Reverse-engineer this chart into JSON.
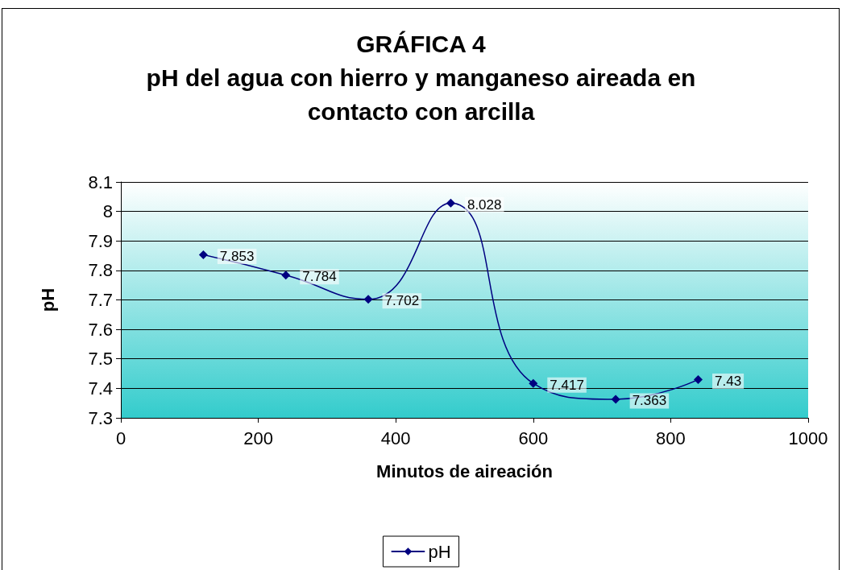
{
  "chart_data": {
    "type": "line",
    "title": "GRÁFICA 4\npH del agua con hierro y manganeso aireada en\ncontacto con arcilla",
    "xlabel": "Minutos de aireación",
    "ylabel": "pH",
    "x": [
      120,
      240,
      360,
      480,
      600,
      720,
      840
    ],
    "series": [
      {
        "name": "pH",
        "color": "#000080",
        "values": [
          7.853,
          7.784,
          7.702,
          8.028,
          7.417,
          7.363,
          7.43
        ]
      }
    ],
    "xlim": [
      0,
      1000
    ],
    "xticks": [
      0,
      200,
      400,
      600,
      800,
      1000
    ],
    "ylim": [
      7.3,
      8.1
    ],
    "yticks": [
      7.3,
      7.4,
      7.5,
      7.6,
      7.7,
      7.8,
      7.9,
      8,
      8.1
    ],
    "grid": "y",
    "legend": "bottom",
    "marker": "diamond",
    "line_style": "solid",
    "data_labels": true
  }
}
